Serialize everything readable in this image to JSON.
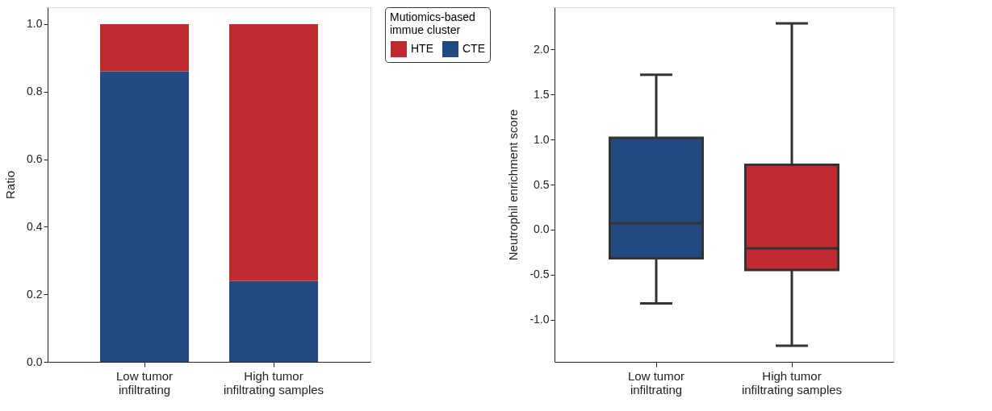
{
  "chart_data": [
    {
      "type": "bar",
      "stacked": true,
      "categories": [
        "Low tumor\ninfiltrating",
        "High tumor\ninfiltrating samples"
      ],
      "ylabel": "Ratio",
      "ylim": [
        0,
        1.05
      ],
      "yticks": [
        {
          "value": 0,
          "label": "0.0"
        },
        0.2,
        0.4,
        0.6,
        0.8,
        {
          "value": 1,
          "label": "1.0"
        }
      ],
      "legend": "right",
      "legend_title": "Mutiomics-based\nimmue cluster",
      "grid": false,
      "series": [
        {
          "name": "CTE",
          "color": "#224a80",
          "values": [
            0.86,
            0.24
          ]
        },
        {
          "name": "HTE",
          "color": "#c0292d",
          "values": [
            0.14,
            0.76
          ]
        }
      ]
    },
    {
      "type": "box",
      "categories": [
        "Low tumor\ninfiltrating",
        "High tumor\ninfiltrating samples"
      ],
      "ylabel": "Neutrophil enrichment score",
      "ylim": [
        -1.47,
        2.47
      ],
      "yticks": [
        {
          "value": -1,
          "label": "-1.0"
        },
        -0.5,
        {
          "value": 0,
          "label": "0.0"
        },
        0.5,
        {
          "value": 1,
          "label": "1.0"
        },
        1.5,
        {
          "value": 2,
          "label": "2.0"
        }
      ],
      "grid": false,
      "colors": [
        "#224a80",
        "#c0292d"
      ],
      "boxes": [
        {
          "low": -0.82,
          "q1": -0.32,
          "median": 0.07,
          "q3": 1.02,
          "high": 1.72
        },
        {
          "low": -1.29,
          "q1": -0.45,
          "median": -0.21,
          "q3": 0.72,
          "high": 2.29
        }
      ]
    }
  ]
}
